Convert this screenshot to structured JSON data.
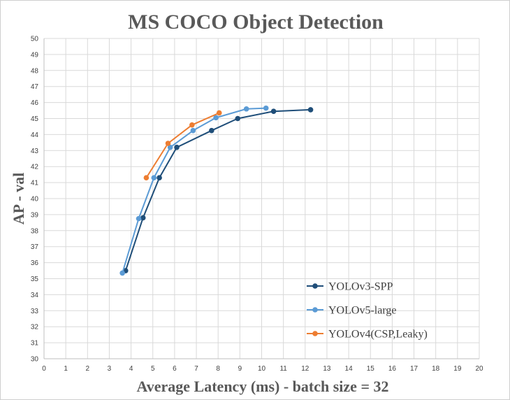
{
  "chart_data": {
    "type": "line",
    "title": "MS COCO Object Detection",
    "xlabel": "Average Latency (ms) - batch size = 32",
    "ylabel": "AP - val",
    "xlim": [
      0,
      20
    ],
    "ylim": [
      30,
      50
    ],
    "xticks": [
      "0",
      "1",
      "2",
      "3",
      "4",
      "5",
      "6",
      "7",
      "8",
      "9",
      "10",
      "11",
      "12",
      "13",
      "14",
      "15",
      "16",
      "17",
      "18",
      "19",
      "20"
    ],
    "yticks": [
      "30",
      "31",
      "32",
      "33",
      "34",
      "35",
      "36",
      "37",
      "38",
      "39",
      "40",
      "41",
      "42",
      "43",
      "44",
      "45",
      "46",
      "47",
      "48",
      "49",
      "50"
    ],
    "grid": true,
    "legend_position": "bottom-right",
    "series": [
      {
        "name": "YOLOv3-SPP",
        "color": "#1f4e79",
        "points": [
          [
            3.75,
            35.5
          ],
          [
            4.55,
            38.8
          ],
          [
            5.3,
            41.3
          ],
          [
            6.1,
            43.2
          ],
          [
            7.7,
            44.25
          ],
          [
            8.9,
            45.0
          ],
          [
            10.55,
            45.45
          ],
          [
            12.25,
            45.55
          ]
        ]
      },
      {
        "name": "YOLOv5-large",
        "color": "#5b9bd5",
        "points": [
          [
            3.6,
            35.35
          ],
          [
            4.35,
            38.75
          ],
          [
            5.05,
            41.3
          ],
          [
            5.8,
            43.2
          ],
          [
            6.85,
            44.25
          ],
          [
            7.9,
            45.05
          ],
          [
            9.3,
            45.6
          ],
          [
            10.2,
            45.65
          ]
        ]
      },
      {
        "name": "YOLOv4(CSP,Leaky)",
        "color": "#ed7d31",
        "points": [
          [
            4.7,
            41.3
          ],
          [
            5.7,
            43.45
          ],
          [
            6.8,
            44.6
          ],
          [
            8.05,
            45.35
          ]
        ]
      }
    ]
  }
}
